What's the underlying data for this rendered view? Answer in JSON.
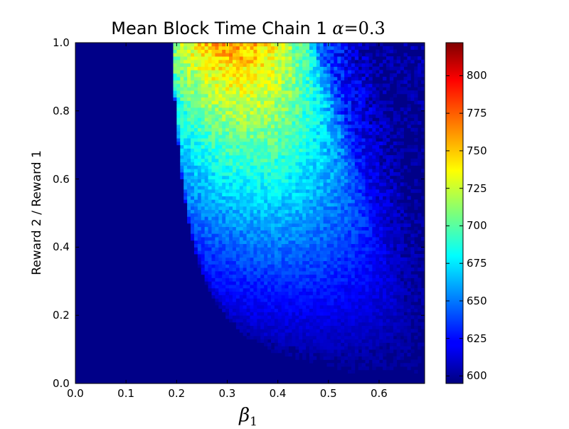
{
  "chart_data": {
    "type": "heatmap",
    "title": "Mean Block Time Chain 1",
    "title_param_symbol": "α",
    "title_param_value": "=0.3",
    "xlabel_symbol": "β",
    "xlabel_subscript": "1",
    "ylabel": "Reward 2 / Reward 1",
    "xlim": [
      0.0,
      0.69
    ],
    "ylim": [
      0.0,
      1.0
    ],
    "x_ticks": [
      "0.0",
      "0.1",
      "0.2",
      "0.3",
      "0.4",
      "0.5",
      "0.6"
    ],
    "y_ticks": [
      "0.0",
      "0.2",
      "0.4",
      "0.6",
      "0.8",
      "1.0"
    ],
    "colorbar": {
      "colormap": "jet",
      "range": [
        595,
        822
      ],
      "ticks": [
        "600",
        "625",
        "650",
        "675",
        "700",
        "725",
        "750",
        "775",
        "800"
      ]
    },
    "grid": false,
    "description_values": {
      "background_value": 597,
      "peak_value": 822,
      "peak_location": {
        "x": 0.37,
        "y": 1.0
      }
    }
  }
}
